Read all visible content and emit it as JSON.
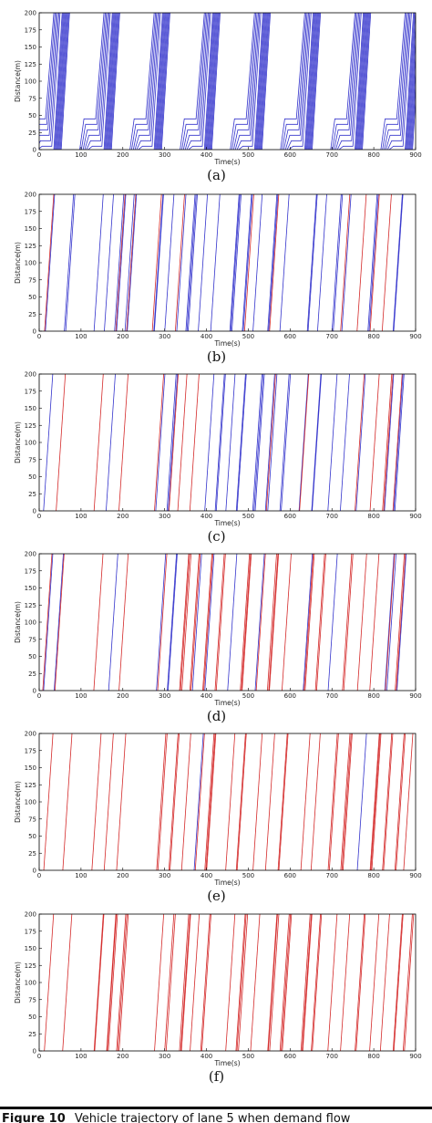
{
  "colors": {
    "car": "#3434cc",
    "cav": "#d42a2a",
    "caption_bar": "#000000"
  },
  "caption": {
    "label": "Figure 10",
    "text": "Vehicle trajectory of lane 5 when demand flow"
  },
  "chart_data": [
    {
      "type": "line",
      "panel_label": "(a)",
      "cav_share": 0.0,
      "queue": true,
      "xlabel": "Time(s)",
      "ylabel": "Distance(m)",
      "xlim": [
        0,
        900
      ],
      "ylim": [
        0,
        200
      ],
      "xticks": [
        0,
        100,
        200,
        300,
        400,
        500,
        600,
        700,
        800,
        900
      ],
      "yticks": [
        0,
        25,
        50,
        75,
        100,
        125,
        150,
        175,
        200
      ],
      "grid": false,
      "cycle_length": 120,
      "green_start": [
        15,
        135,
        255,
        375,
        495,
        615,
        735,
        855
      ]
    },
    {
      "type": "line",
      "panel_label": "(b)",
      "cav_share": 0.2,
      "queue": false,
      "xlabel": "Time(s)",
      "ylabel": "Distance(m)",
      "xlim": [
        0,
        900
      ],
      "ylim": [
        0,
        200
      ],
      "xticks": [
        0,
        100,
        200,
        300,
        400,
        500,
        600,
        700,
        800,
        900
      ],
      "yticks": [
        0,
        25,
        50,
        75,
        100,
        125,
        150,
        175,
        200
      ],
      "grid": false,
      "vehicle_groups_start": [
        12,
        60,
        130,
        155,
        180,
        205,
        270,
        300,
        325,
        350,
        380,
        410,
        455,
        485,
        510,
        545,
        575,
        640,
        665,
        700,
        720,
        760,
        785,
        820,
        845
      ]
    },
    {
      "type": "line",
      "panel_label": "(c)",
      "cav_share": 0.4,
      "queue": false,
      "xlabel": "Time(s)",
      "ylabel": "Distance(m)",
      "xlim": [
        0,
        900
      ],
      "ylim": [
        0,
        200
      ],
      "xticks": [
        0,
        100,
        200,
        300,
        400,
        500,
        600,
        700,
        800,
        900
      ],
      "yticks": [
        0,
        25,
        50,
        75,
        100,
        125,
        150,
        175,
        200
      ],
      "grid": false,
      "vehicle_groups_start": [
        10,
        40,
        130,
        160,
        190,
        275,
        305,
        330,
        360,
        395,
        420,
        445,
        470,
        510,
        540,
        575,
        620,
        650,
        690,
        720,
        755,
        790,
        820,
        845
      ]
    },
    {
      "type": "line",
      "panel_label": "(d)",
      "cav_share": 0.6,
      "queue": false,
      "xlabel": "Time(s)",
      "ylabel": "Distance(m)",
      "xlim": [
        0,
        900
      ],
      "ylim": [
        0,
        200
      ],
      "xticks": [
        0,
        100,
        200,
        300,
        400,
        500,
        600,
        700,
        800,
        900
      ],
      "yticks": [
        0,
        25,
        50,
        75,
        100,
        125,
        150,
        175,
        200
      ],
      "grid": false,
      "vehicle_groups_start": [
        8,
        35,
        130,
        165,
        190,
        280,
        305,
        335,
        360,
        390,
        420,
        450,
        480,
        515,
        545,
        580,
        630,
        660,
        690,
        725,
        760,
        790,
        825,
        850
      ]
    },
    {
      "type": "line",
      "panel_label": "(e)",
      "cav_share": 0.8,
      "queue": false,
      "xlabel": "Time(s)",
      "ylabel": "Distance(m)",
      "xlim": [
        0,
        900
      ],
      "ylim": [
        0,
        200
      ],
      "xticks": [
        0,
        100,
        200,
        300,
        400,
        500,
        600,
        700,
        800,
        900
      ],
      "yticks": [
        0,
        25,
        50,
        75,
        100,
        125,
        150,
        175,
        200
      ],
      "grid": false,
      "vehicle_groups_start": [
        10,
        55,
        125,
        155,
        185,
        280,
        310,
        340,
        370,
        395,
        445,
        470,
        510,
        540,
        570,
        625,
        650,
        690,
        720,
        760,
        790,
        820,
        850,
        870
      ]
    },
    {
      "type": "line",
      "panel_label": "(f)",
      "cav_share": 1.0,
      "queue": false,
      "xlabel": "Time(s)",
      "ylabel": "Distance(m)",
      "xlim": [
        0,
        900
      ],
      "ylim": [
        0,
        200
      ],
      "xticks": [
        0,
        100,
        200,
        300,
        400,
        500,
        600,
        700,
        800,
        900
      ],
      "yticks": [
        0,
        25,
        50,
        75,
        100,
        125,
        150,
        175,
        200
      ],
      "grid": false,
      "vehicle_groups_start": [
        12,
        55,
        130,
        160,
        185,
        275,
        300,
        335,
        360,
        385,
        445,
        470,
        505,
        545,
        575,
        625,
        650,
        690,
        720,
        755,
        790,
        815,
        845,
        870
      ]
    }
  ]
}
